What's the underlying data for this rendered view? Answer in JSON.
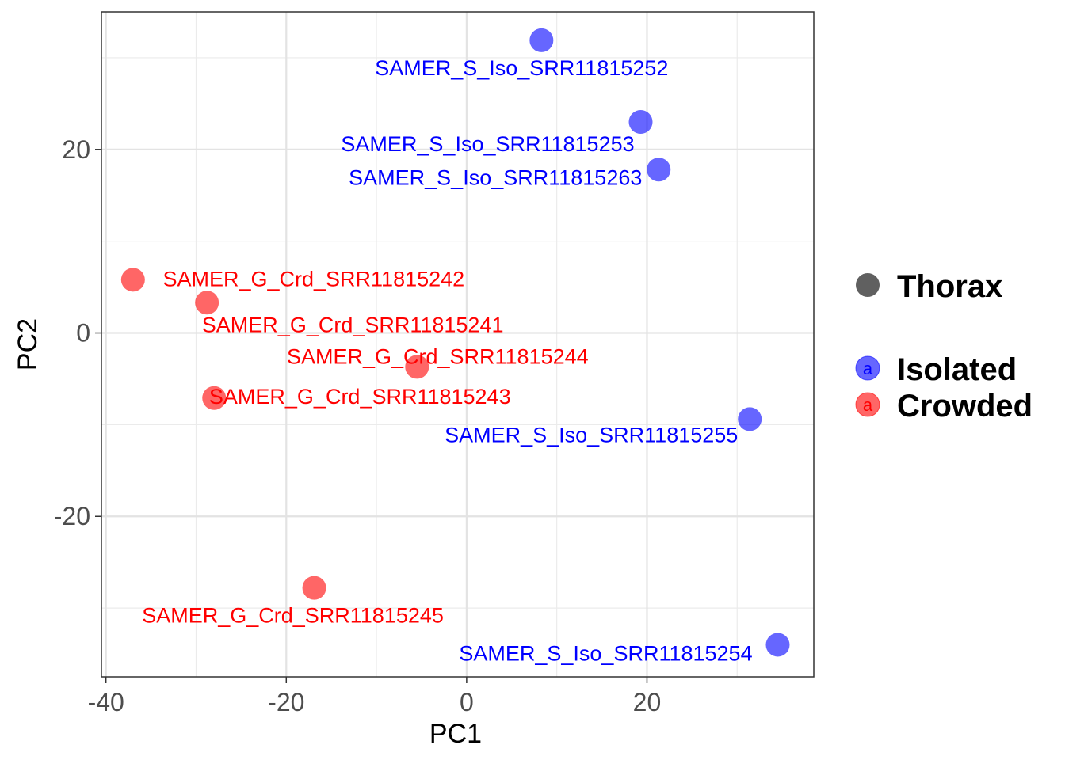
{
  "chart_data": {
    "type": "scatter",
    "title": "",
    "xlabel": "PC1",
    "ylabel": "PC2",
    "xlim": [
      -40.5,
      38.5
    ],
    "ylim": [
      -37.5,
      35
    ],
    "xticks": [
      -40,
      -20,
      0,
      20
    ],
    "yticks": [
      -20,
      0,
      20
    ],
    "xtick_labels": [
      "-40",
      "-20",
      "0",
      "20"
    ],
    "ytick_labels": [
      "-20",
      "0",
      "20"
    ],
    "grid": true,
    "legend": {
      "placement": "right",
      "shape_title": "Thorax",
      "entries": [
        {
          "name": "Isolated",
          "color": "#0000ff",
          "key_text": "a"
        },
        {
          "name": "Crowded",
          "color": "#ff0000",
          "key_text": "a"
        }
      ]
    },
    "series": [
      {
        "name": "Isolated",
        "color": "#0000ff",
        "points": [
          {
            "x": 8.3,
            "y": 31.9,
            "label": "SAMER_S_Iso_SRR11815252"
          },
          {
            "x": 19.3,
            "y": 23.0,
            "label": "SAMER_S_Iso_SRR11815253"
          },
          {
            "x": 21.3,
            "y": 17.8,
            "label": "SAMER_S_Iso_SRR11815263"
          },
          {
            "x": 31.4,
            "y": -9.4,
            "label": "SAMER_S_Iso_SRR11815255"
          },
          {
            "x": 34.5,
            "y": -34.0,
            "label": "SAMER_S_Iso_SRR11815254"
          }
        ]
      },
      {
        "name": "Crowded",
        "color": "#ff0000",
        "points": [
          {
            "x": -37.0,
            "y": 5.8,
            "label": "SAMER_G_Crd_SRR11815242"
          },
          {
            "x": -28.8,
            "y": 3.3,
            "label": "SAMER_G_Crd_SRR11815241"
          },
          {
            "x": -5.5,
            "y": -3.7,
            "label": "SAMER_G_Crd_SRR11815244"
          },
          {
            "x": -28.0,
            "y": -7.1,
            "label": "SAMER_G_Crd_SRR11815243"
          },
          {
            "x": -16.9,
            "y": -27.8,
            "label": "SAMER_G_Crd_SRR11815245"
          }
        ]
      }
    ]
  }
}
